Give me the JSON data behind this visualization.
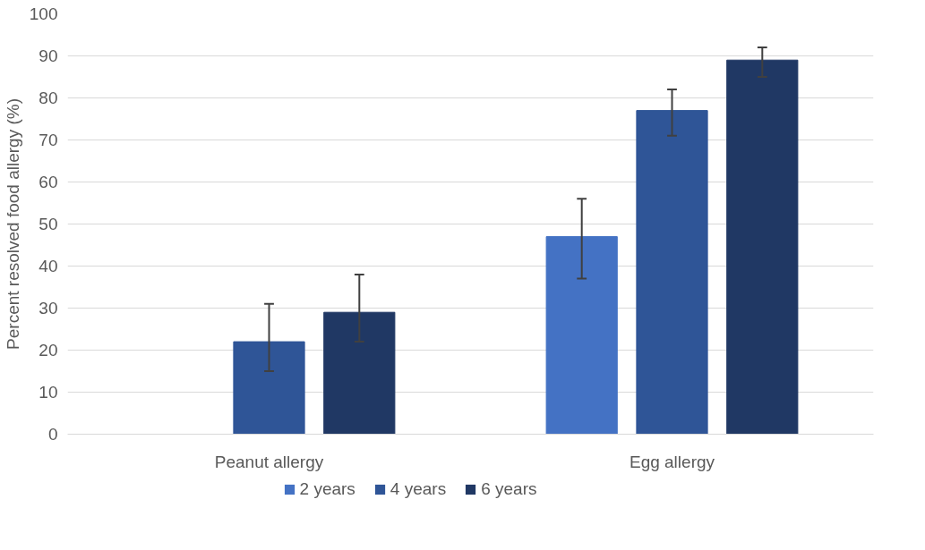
{
  "chart_data": {
    "type": "bar",
    "ylabel": "Percent resolved food allergy (%)",
    "categories": [
      "Peanut allergy",
      "Egg allergy"
    ],
    "series": [
      {
        "name": "2 years",
        "color": "#4472c4",
        "values": [
          null,
          47
        ],
        "errors": [
          null,
          [
            37,
            56
          ]
        ]
      },
      {
        "name": "4 years",
        "color": "#2f5597",
        "values": [
          22,
          77
        ],
        "errors": [
          [
            15,
            31
          ],
          [
            71,
            82
          ]
        ]
      },
      {
        "name": "6 years",
        "color": "#203864",
        "values": [
          29,
          89
        ],
        "errors": [
          [
            22,
            38
          ],
          [
            85,
            92
          ]
        ]
      }
    ],
    "ylim": [
      0,
      100
    ],
    "yticks": [
      0,
      10,
      20,
      30,
      40,
      50,
      60,
      70,
      80,
      90,
      100
    ],
    "grid": "y",
    "legend": "bottom"
  }
}
